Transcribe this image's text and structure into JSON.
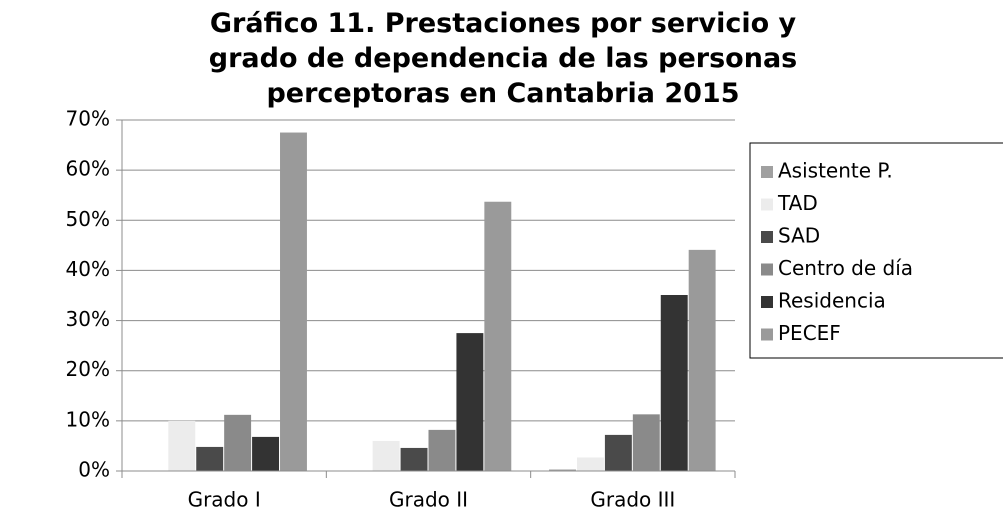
{
  "chart_data": {
    "type": "bar",
    "title": "Gráfico 11. Prestaciones por servicio y grado de dependencia de las personas perceptoras en Cantabria 2015",
    "categories": [
      "Grado I",
      "Grado II",
      "Grado III"
    ],
    "series": [
      {
        "name": "Asistente P.",
        "color": "#a0a0a0",
        "values": [
          0,
          0,
          0.3
        ]
      },
      {
        "name": "TAD",
        "color": "#ececec",
        "values": [
          10,
          6,
          2.7
        ]
      },
      {
        "name": "SAD",
        "color": "#4a4a4a",
        "values": [
          4.8,
          4.6,
          7.2
        ]
      },
      {
        "name": "Centro de día",
        "color": "#8a8a8a",
        "values": [
          11.2,
          8.2,
          11.3
        ]
      },
      {
        "name": "Residencia",
        "color": "#333333",
        "values": [
          6.8,
          27.5,
          35.1
        ]
      },
      {
        "name": "PECEF",
        "color": "#9a9a9a",
        "values": [
          67.5,
          53.7,
          44.1
        ]
      }
    ],
    "ylim": [
      0,
      70
    ],
    "yticks": [
      {
        "value": 0,
        "label": "0%"
      },
      {
        "value": 10,
        "label": "10%"
      },
      {
        "value": 20,
        "label": "20%"
      },
      {
        "value": 30,
        "label": "30%"
      },
      {
        "value": 40,
        "label": "40%"
      },
      {
        "value": 50,
        "label": "50%"
      },
      {
        "value": 60,
        "label": "60%"
      },
      {
        "value": 70,
        "label": "70%"
      }
    ],
    "grid": true,
    "legend": "right"
  }
}
